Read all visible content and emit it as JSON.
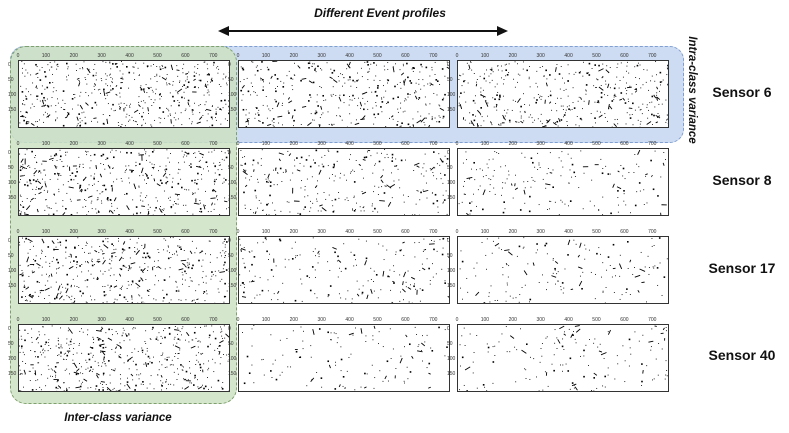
{
  "header": {
    "title": "Different Event profiles"
  },
  "labels": {
    "intra": "Intra-class variance",
    "inter": "Inter-class variance"
  },
  "rows": [
    {
      "label": "Sensor 6",
      "densities": [
        0.95,
        0.75,
        0.8
      ]
    },
    {
      "label": "Sensor 8",
      "densities": [
        0.9,
        0.55,
        0.35
      ]
    },
    {
      "label": "Sensor 17",
      "densities": [
        0.9,
        0.4,
        0.3
      ]
    },
    {
      "label": "Sensor 40",
      "densities": [
        0.95,
        0.25,
        0.3
      ]
    }
  ],
  "colors": {
    "intra_fill": "#c4d6f0",
    "inter_fill": "#cde2c3",
    "event_dots": "#000000"
  }
}
